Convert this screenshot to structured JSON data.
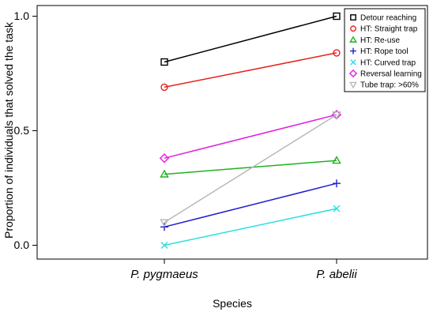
{
  "chart_data": {
    "type": "line",
    "xlabel": "Species",
    "ylabel": "Proportion of individuals that solved the task",
    "categories": [
      "P. pygmaeus",
      "P. abelii"
    ],
    "ylim": [
      0,
      1
    ],
    "yticks": [
      "0.0",
      "0.5",
      "1.0"
    ],
    "grid": false,
    "legend_position": "top-right",
    "series": [
      {
        "name": "Detour reaching",
        "values": [
          0.8,
          1.0
        ],
        "color": "#000000",
        "marker": "square"
      },
      {
        "name": "HT: Straight trap",
        "values": [
          0.69,
          0.84
        ],
        "color": "#e8201e",
        "marker": "circle"
      },
      {
        "name": "HT: Re-use",
        "values": [
          0.31,
          0.37
        ],
        "color": "#1fb21f",
        "marker": "triangle-up"
      },
      {
        "name": "HT: Rope tool",
        "values": [
          0.08,
          0.27
        ],
        "color": "#1f1fcc",
        "marker": "plus"
      },
      {
        "name": "HT: Curved trap",
        "values": [
          0.0,
          0.16
        ],
        "color": "#27e0e0",
        "marker": "cross"
      },
      {
        "name": "Reversal learning",
        "values": [
          0.38,
          0.57
        ],
        "color": "#e01fe0",
        "marker": "diamond"
      },
      {
        "name": "Tube trap: >60%",
        "values": [
          0.1,
          0.57
        ],
        "color": "#b8b8b8",
        "marker": "triangle-down"
      }
    ]
  }
}
